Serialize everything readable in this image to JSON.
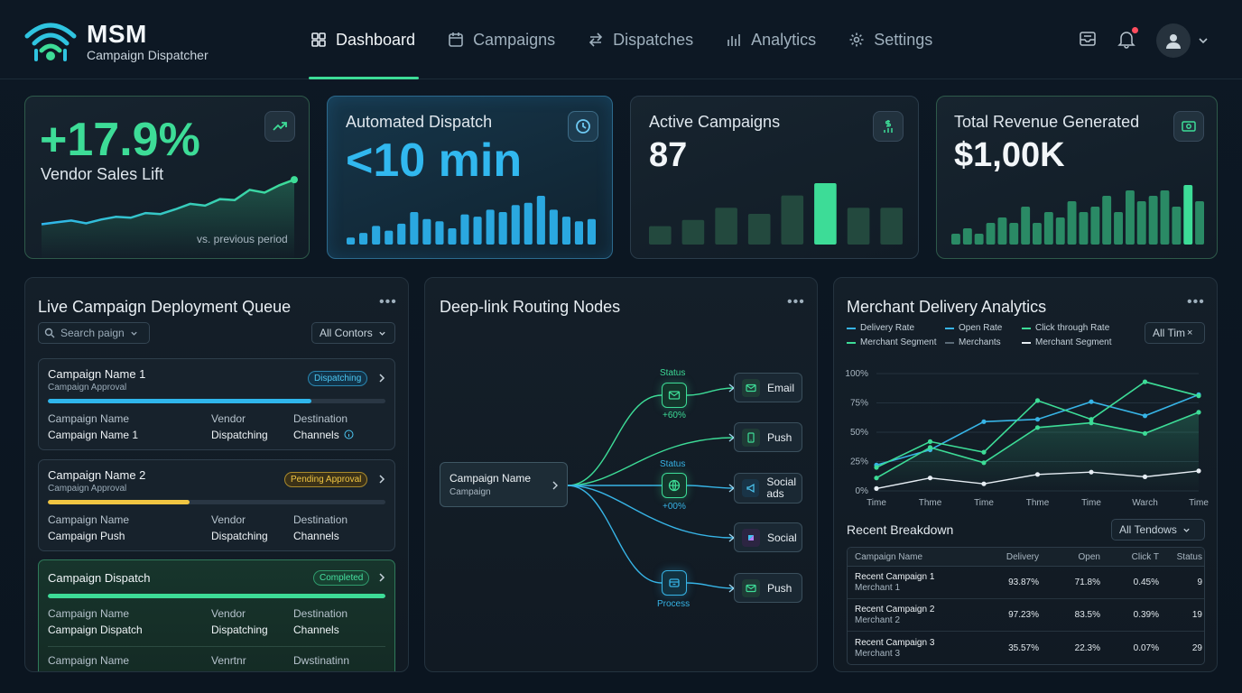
{
  "brand": {
    "title": "MSM",
    "subtitle": "Campaign Dispatcher"
  },
  "nav": [
    {
      "label": "Dashboard",
      "icon": "grid-icon",
      "active": true
    },
    {
      "label": "Campaigns",
      "icon": "calendar-icon",
      "active": false
    },
    {
      "label": "Dispatches",
      "icon": "arrows-icon",
      "active": false
    },
    {
      "label": "Analytics",
      "icon": "bar-chart-icon",
      "active": false
    },
    {
      "label": "Settings",
      "icon": "gear-icon",
      "active": false
    }
  ],
  "colors": {
    "accent": "#3ddc97",
    "blue": "#37b4e6",
    "yellow": "#f0c542",
    "notification": "#ff4d5e"
  },
  "kpis": {
    "sales_lift": {
      "value": "+17.9%",
      "label": "Vendor Sales Lift",
      "note": "vs. previous period",
      "trend": [
        18,
        20,
        22,
        19,
        23,
        26,
        25,
        30,
        29,
        34,
        40,
        38,
        45,
        44,
        55,
        52,
        60,
        66
      ]
    },
    "dispatch": {
      "label": "Automated Dispatch",
      "value": "<10 min",
      "bars": [
        3,
        5,
        8,
        6,
        9,
        14,
        11,
        10,
        7,
        13,
        12,
        15,
        14,
        17,
        18,
        21,
        15,
        12,
        10,
        11
      ]
    },
    "campaigns": {
      "label": "Active Campaigns",
      "value": "87",
      "bars": [
        3,
        4,
        6,
        5,
        8,
        10,
        6,
        6
      ]
    },
    "revenue": {
      "label": "Total Revenue Generated",
      "value": "$1,00K",
      "bars": [
        2,
        3,
        2,
        4,
        5,
        4,
        7,
        4,
        6,
        5,
        8,
        6,
        7,
        9,
        6,
        10,
        8,
        9,
        10,
        7,
        11,
        8
      ]
    }
  },
  "queue": {
    "title": "Live Campaign Deployment Queue",
    "search_placeholder": "Search paign",
    "filter": "All Contors",
    "col_labels": {
      "name": "Campaign Name",
      "vendor": "Vendor",
      "destination": "Destination"
    },
    "items": [
      {
        "title": "Campaign Name 1",
        "subtitle": "Campaign Approval",
        "status": "Dispatching",
        "progress": 0.78,
        "name": "Campaign Name 1",
        "vendor": "Dispatching",
        "destination": "Channels"
      },
      {
        "title": "Campaign Name 2",
        "subtitle": "Campaign Approval",
        "status": "Pending Approval",
        "progress": 0.42,
        "name": "Campaign Push",
        "vendor": "Dispatching",
        "destination": "Channels"
      },
      {
        "title": "Campaign Dispatch",
        "status": "Completed",
        "progress": 1.0,
        "name": "Campaign Dispatch",
        "vendor": "Dispatching",
        "destination": "Channels"
      }
    ],
    "partial_row": {
      "name": "Campaign Name",
      "vendor": "Venrtnr",
      "destination": "Dwstinatinn"
    }
  },
  "routing": {
    "title": "Deep-link Routing Nodes",
    "source": {
      "title": "Campaign Name",
      "subtitle": "Campaign"
    },
    "hubs": [
      {
        "top_label": "Status",
        "bottom_label": "+60%",
        "icon": "mail-icon"
      },
      {
        "top_label": "Status",
        "bottom_label": "+00%",
        "icon": "globe-icon"
      },
      {
        "bottom_label": "Process",
        "icon": "package-icon"
      }
    ],
    "targets": [
      {
        "label": "Email",
        "icon": "mail-icon"
      },
      {
        "label": "Push",
        "icon": "phone-icon"
      },
      {
        "label": "Social ads",
        "icon": "megaphone-icon"
      },
      {
        "label": "Social",
        "icon": "social-icon"
      },
      {
        "label": "Push",
        "icon": "mail-icon"
      }
    ]
  },
  "analytics": {
    "title": "Merchant Delivery Analytics",
    "range": "All Tim",
    "legend": [
      {
        "name": "Delivery Rate",
        "color": "#37b4e6"
      },
      {
        "name": "Open Rate",
        "color": "#37b4e6"
      },
      {
        "name": "Click through Rate",
        "color": "#3ddc97"
      },
      {
        "name": "Merchant Segment",
        "color": "#3ddc97"
      },
      {
        "name": "Merchants",
        "color": "#5a6a77"
      },
      {
        "name": "Merchant Segment",
        "color": "#e6edf3"
      }
    ],
    "chart_data": {
      "type": "line",
      "x": [
        "Time",
        "Thme",
        "Time",
        "Thme",
        "Time",
        "Warch",
        "Time"
      ],
      "yticks": [
        "100%",
        "75%",
        "50%",
        "25%",
        "0%"
      ],
      "ylim": [
        0,
        100
      ],
      "series": [
        {
          "name": "Delivery Rate",
          "color": "#37b4e6",
          "values": [
            22,
            35,
            59,
            61,
            76,
            64,
            82
          ]
        },
        {
          "name": "Click through Rate",
          "color": "#3ddc97",
          "values": [
            20,
            42,
            33,
            77,
            61,
            93,
            81
          ]
        },
        {
          "name": "Merchant Segment",
          "color": "#3ddc97",
          "values": [
            11,
            37,
            24,
            54,
            58,
            49,
            67
          ]
        },
        {
          "name": "Merchant Segment",
          "color": "#e6edf3",
          "values": [
            2,
            11,
            6,
            14,
            16,
            12,
            17
          ]
        }
      ]
    },
    "breakdown": {
      "title": "Recent Breakdown",
      "filter": "All Tendows",
      "headers": [
        "Campaign Name",
        "Delivery",
        "Open",
        "Click T",
        "Status"
      ],
      "rows": [
        {
          "name": "Recent Campaign 1",
          "merchant": "Merchant 1",
          "delivery": "93.87%",
          "open": "71.8%",
          "click": "0.45%",
          "status": "9"
        },
        {
          "name": "Recent Campaign 2",
          "merchant": "Merchant 2",
          "delivery": "97.23%",
          "open": "83.5%",
          "click": "0.39%",
          "status": "19"
        },
        {
          "name": "Recent Campaign 3",
          "merchant": "Merchant 3",
          "delivery": "35.57%",
          "open": "22.3%",
          "click": "0.07%",
          "status": "29"
        }
      ]
    }
  }
}
